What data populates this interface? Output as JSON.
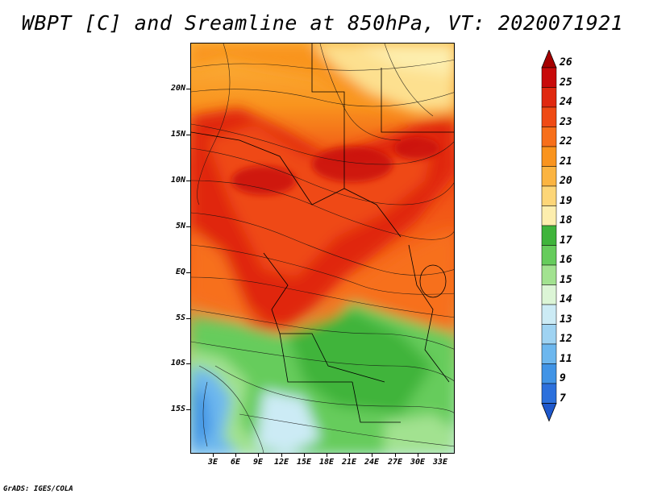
{
  "title": "WBPT [C] and Sreamline at 850hPa, VT: 2020071921",
  "footer": "GrADS: IGES/COLA",
  "lat_labels": [
    "20N",
    "15N",
    "10N",
    "5N",
    "EQ",
    "5S",
    "10S",
    "15S"
  ],
  "lon_labels": [
    "3E",
    "6E",
    "9E",
    "12E",
    "15E",
    "18E",
    "21E",
    "24E",
    "27E",
    "30E",
    "33E"
  ],
  "colorbar": {
    "labels": [
      "26",
      "25",
      "24",
      "23",
      "22",
      "21",
      "20",
      "19",
      "18",
      "17",
      "16",
      "15",
      "14",
      "13",
      "12",
      "11",
      "9",
      "7"
    ],
    "colors": [
      "#a50000",
      "#c80a0a",
      "#e0280f",
      "#ef4a14",
      "#f76f1a",
      "#f9941e",
      "#fbb441",
      "#fdd678",
      "#fdeeae",
      "#3fb43b",
      "#66cc5c",
      "#a2e290",
      "#dcf5d6",
      "#ccebf5",
      "#9fd3f2",
      "#6db7ee",
      "#4194e6",
      "#2c70dc",
      "#1e58cc"
    ],
    "top_arrow_color": "#a50000",
    "bottom_arrow_color": "#1e58cc"
  },
  "legend_colors": {
    "hot": "#e5401a",
    "warm": "#f7a23a",
    "mild": "#fde08f",
    "cool_green": "#5cc351",
    "light_green": "#a8e393",
    "cold_blue": "#3a8ce6"
  }
}
